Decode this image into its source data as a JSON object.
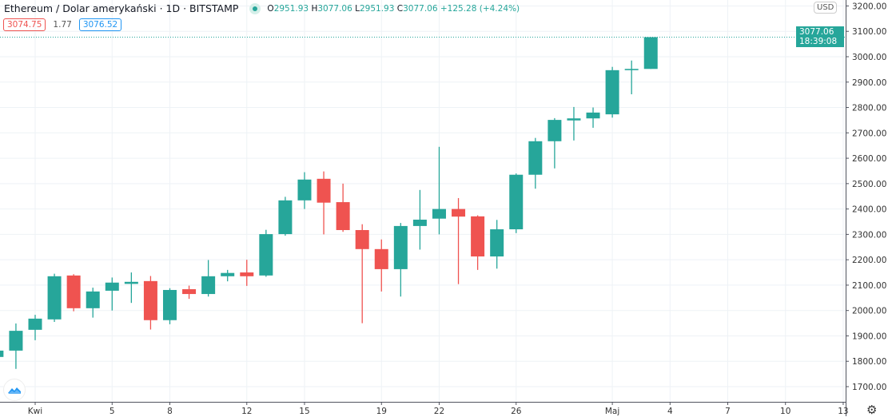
{
  "header": {
    "symbol_title": "Ethereum / Dolar amerykański · 1D · BITSTAMP",
    "market_status_icon": "market-open-dot",
    "ohlc": {
      "o_label": "O",
      "o": "2951.93",
      "h_label": "H",
      "h": "3077.06",
      "l_label": "L",
      "l": "2951.93",
      "c_label": "C",
      "c": "3077.06",
      "change": "+125.28 (+4.24%)"
    },
    "bid": "3074.75",
    "spread": "1.77",
    "ask": "3076.52"
  },
  "price_axis": {
    "currency": "USD",
    "last_price": "3077.06",
    "countdown": "18:39:08"
  },
  "colors": {
    "up": "#26a69a",
    "down": "#ef5350",
    "grid": "#eef2f6",
    "bid": "#ef5350",
    "ask": "#2196f3"
  },
  "icons": {
    "logo": "tradingview-cloud-icon",
    "settings": "gear-icon"
  },
  "chart_data": {
    "type": "candlestick",
    "interval": "1D",
    "ylim": [
      1650,
      3230
    ],
    "yticks": [
      "1700.00",
      "1800.00",
      "1900.00",
      "2000.00",
      "2100.00",
      "2200.00",
      "2300.00",
      "2400.00",
      "2500.00",
      "2600.00",
      "2700.00",
      "2800.00",
      "2900.00",
      "3000.00",
      "3100.00",
      "3200.00"
    ],
    "xticks": [
      {
        "date": "2021-04-01",
        "label": "Kwi"
      },
      {
        "date": "2021-04-05",
        "label": "5"
      },
      {
        "date": "2021-04-08",
        "label": "8"
      },
      {
        "date": "2021-04-12",
        "label": "12"
      },
      {
        "date": "2021-04-15",
        "label": "15"
      },
      {
        "date": "2021-04-19",
        "label": "19"
      },
      {
        "date": "2021-04-22",
        "label": "22"
      },
      {
        "date": "2021-04-26",
        "label": "26"
      },
      {
        "date": "2021-05-01",
        "label": "Maj"
      },
      {
        "date": "2021-05-04",
        "label": "4"
      },
      {
        "date": "2021-05-07",
        "label": "7"
      },
      {
        "date": "2021-05-10",
        "label": "10"
      },
      {
        "date": "2021-05-13",
        "label": "13"
      }
    ],
    "xlim": [
      "2021-03-30",
      "2021-05-15"
    ],
    "grid": true,
    "last_price_line": 3077.06,
    "candles": [
      {
        "date": "2021-03-30",
        "o": 1817,
        "h": 1850,
        "l": 1810,
        "c": 1842
      },
      {
        "date": "2021-03-31",
        "o": 1842,
        "h": 1949,
        "l": 1770,
        "c": 1920
      },
      {
        "date": "2021-04-01",
        "o": 1924,
        "h": 1983,
        "l": 1883,
        "c": 1968
      },
      {
        "date": "2021-04-02",
        "o": 1965,
        "h": 2145,
        "l": 1955,
        "c": 2135
      },
      {
        "date": "2021-04-03",
        "o": 2138,
        "h": 2143,
        "l": 1997,
        "c": 2009
      },
      {
        "date": "2021-04-04",
        "o": 2009,
        "h": 2090,
        "l": 1972,
        "c": 2075
      },
      {
        "date": "2021-04-05",
        "o": 2078,
        "h": 2130,
        "l": 2000,
        "c": 2110
      },
      {
        "date": "2021-04-06",
        "o": 2105,
        "h": 2150,
        "l": 2030,
        "c": 2113
      },
      {
        "date": "2021-04-07",
        "o": 2116,
        "h": 2136,
        "l": 1925,
        "c": 1962
      },
      {
        "date": "2021-04-08",
        "o": 1962,
        "h": 2088,
        "l": 1946,
        "c": 2081
      },
      {
        "date": "2021-04-09",
        "o": 2084,
        "h": 2098,
        "l": 2046,
        "c": 2065
      },
      {
        "date": "2021-04-10",
        "o": 2065,
        "h": 2199,
        "l": 2055,
        "c": 2135
      },
      {
        "date": "2021-04-11",
        "o": 2135,
        "h": 2160,
        "l": 2115,
        "c": 2148
      },
      {
        "date": "2021-04-12",
        "o": 2150,
        "h": 2200,
        "l": 2097,
        "c": 2135
      },
      {
        "date": "2021-04-13",
        "o": 2138,
        "h": 2318,
        "l": 2133,
        "c": 2301
      },
      {
        "date": "2021-04-14",
        "o": 2301,
        "h": 2448,
        "l": 2295,
        "c": 2434
      },
      {
        "date": "2021-04-15",
        "o": 2434,
        "h": 2545,
        "l": 2400,
        "c": 2516
      },
      {
        "date": "2021-04-16",
        "o": 2519,
        "h": 2548,
        "l": 2300,
        "c": 2425
      },
      {
        "date": "2021-04-17",
        "o": 2427,
        "h": 2500,
        "l": 2310,
        "c": 2317
      },
      {
        "date": "2021-04-18",
        "o": 2317,
        "h": 2340,
        "l": 1950,
        "c": 2242
      },
      {
        "date": "2021-04-19",
        "o": 2242,
        "h": 2280,
        "l": 2075,
        "c": 2163
      },
      {
        "date": "2021-04-20",
        "o": 2163,
        "h": 2345,
        "l": 2055,
        "c": 2333
      },
      {
        "date": "2021-04-21",
        "o": 2333,
        "h": 2475,
        "l": 2240,
        "c": 2358
      },
      {
        "date": "2021-04-22",
        "o": 2362,
        "h": 2645,
        "l": 2300,
        "c": 2400
      },
      {
        "date": "2021-04-23",
        "o": 2400,
        "h": 2443,
        "l": 2104,
        "c": 2370
      },
      {
        "date": "2021-04-24",
        "o": 2371,
        "h": 2375,
        "l": 2160,
        "c": 2213
      },
      {
        "date": "2021-04-25",
        "o": 2213,
        "h": 2357,
        "l": 2165,
        "c": 2320
      },
      {
        "date": "2021-04-26",
        "o": 2320,
        "h": 2540,
        "l": 2305,
        "c": 2535
      },
      {
        "date": "2021-04-27",
        "o": 2535,
        "h": 2680,
        "l": 2480,
        "c": 2667
      },
      {
        "date": "2021-04-28",
        "o": 2667,
        "h": 2758,
        "l": 2560,
        "c": 2751
      },
      {
        "date": "2021-04-29",
        "o": 2749,
        "h": 2802,
        "l": 2670,
        "c": 2757
      },
      {
        "date": "2021-04-30",
        "o": 2757,
        "h": 2800,
        "l": 2720,
        "c": 2780
      },
      {
        "date": "2021-05-01",
        "o": 2773,
        "h": 2960,
        "l": 2760,
        "c": 2947
      },
      {
        "date": "2021-05-02",
        "o": 2947,
        "h": 2985,
        "l": 2852,
        "c": 2952
      },
      {
        "date": "2021-05-03",
        "o": 2951.93,
        "h": 3077.06,
        "l": 2951.93,
        "c": 3077.06
      }
    ]
  }
}
